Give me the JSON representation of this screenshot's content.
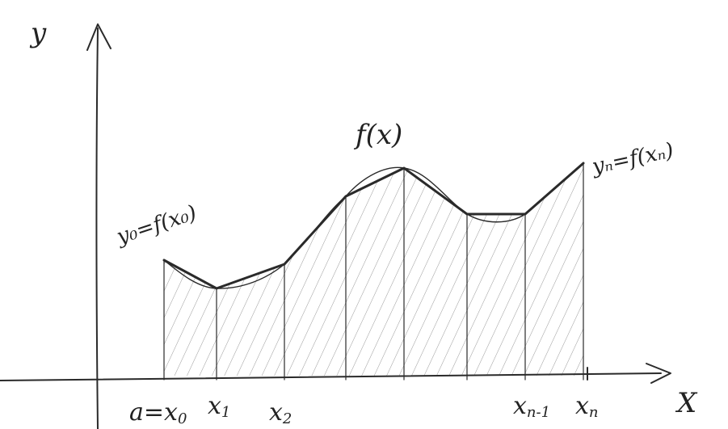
{
  "axes": {
    "y_label": "y",
    "x_label": "X"
  },
  "curve_label": "f(x)",
  "left_endpoint_label": "y₀=f(x₀)",
  "right_endpoint_label": "yₙ=f(xₙ)",
  "x_ticks": [
    {
      "main": "a=x",
      "sub": "0"
    },
    {
      "main": "x",
      "sub": "1"
    },
    {
      "main": "x",
      "sub": "2"
    },
    {
      "main": "",
      "sub": ""
    },
    {
      "main": "",
      "sub": ""
    },
    {
      "main": "",
      "sub": ""
    },
    {
      "main": "x",
      "sub": "n-1"
    },
    {
      "main": "x",
      "sub": "n"
    }
  ],
  "colors": {
    "ink": "#2a2a2a",
    "hatch": "#8a8a8a"
  }
}
